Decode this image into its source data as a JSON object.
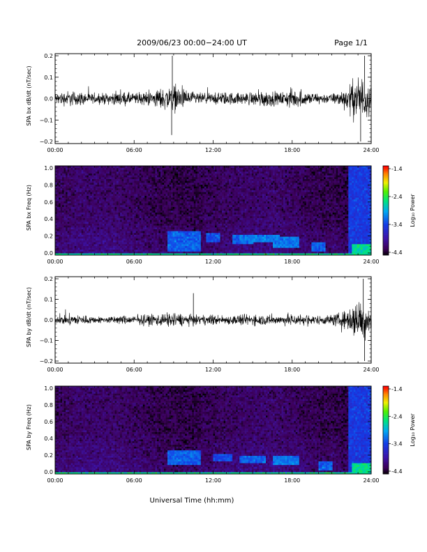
{
  "header": {
    "title": "2009/06/23  00:00−24:00 UT",
    "page": "Page 1/1"
  },
  "x_axis": {
    "label": "Universal Time (hh:mm)",
    "ticks": [
      "00:00",
      "06:00",
      "12:00",
      "18:00",
      "24:00"
    ],
    "range_hours": [
      0,
      24
    ]
  },
  "colorbar": {
    "label": "Log₁₀ Power",
    "ticks": [
      "-1.4",
      "-2.4",
      "-3.4",
      "-4.4"
    ],
    "range": [
      -4.4,
      -1.4
    ]
  },
  "chart_data": [
    {
      "type": "line",
      "ylabel": "SPA bx dB/dt (nT/sec)",
      "ylim": [
        -0.2,
        0.2
      ],
      "yticks": [
        "0.2",
        "0.1",
        "0.0",
        "−0.1",
        "−0.2"
      ],
      "xlim_hours": [
        0,
        24
      ],
      "envelope_hours": [
        0,
        1,
        2,
        3,
        4,
        5,
        6,
        7,
        8,
        9,
        10,
        11,
        12,
        13,
        14,
        15,
        16,
        17,
        18,
        19,
        20,
        21,
        22,
        22.5,
        23,
        23.5,
        24
      ],
      "envelope_amplitude": [
        0.05,
        0.07,
        0.06,
        0.04,
        0.05,
        0.06,
        0.05,
        0.06,
        0.09,
        0.12,
        0.07,
        0.05,
        0.05,
        0.06,
        0.05,
        0.06,
        0.08,
        0.05,
        0.09,
        0.06,
        0.05,
        0.04,
        0.09,
        0.15,
        0.2,
        0.2,
        0.12
      ],
      "spikes": [
        {
          "t": 8.9,
          "v": 0.2
        },
        {
          "t": 8.85,
          "v": -0.17
        },
        {
          "t": 23.2,
          "v": -0.2
        },
        {
          "t": 23.5,
          "v": 0.2
        }
      ]
    },
    {
      "type": "heatmap",
      "ylabel": "SPA bx Freq (Hz)",
      "ylim": [
        0.0,
        1.0
      ],
      "yticks": [
        "1.0",
        "0.8",
        "0.6",
        "0.4",
        "0.2",
        "0.0"
      ],
      "xlim_hours": [
        0,
        24
      ],
      "zlim": [
        -4.4,
        -1.4
      ],
      "features": [
        {
          "t": [
            0,
            24
          ],
          "f": [
            0,
            0.03
          ],
          "level": -2.6
        },
        {
          "t": [
            8.5,
            11
          ],
          "f": [
            0.05,
            0.28
          ],
          "level": -3.2
        },
        {
          "t": [
            11.5,
            12.5
          ],
          "f": [
            0.15,
            0.25
          ],
          "level": -3.3
        },
        {
          "t": [
            13.5,
            15
          ],
          "f": [
            0.12,
            0.22
          ],
          "level": -3.2
        },
        {
          "t": [
            14,
            17
          ],
          "f": [
            0.15,
            0.22
          ],
          "level": -3.1
        },
        {
          "t": [
            16.5,
            18.5
          ],
          "f": [
            0.08,
            0.2
          ],
          "level": -3.1
        },
        {
          "t": [
            19.5,
            20.5
          ],
          "f": [
            0.05,
            0.15
          ],
          "level": -3.2
        },
        {
          "t": [
            22.3,
            24
          ],
          "f": [
            0,
            1.0
          ],
          "level": -3.4
        },
        {
          "t": [
            22.5,
            24
          ],
          "f": [
            0,
            0.12
          ],
          "level": -2.6
        }
      ]
    },
    {
      "type": "line",
      "ylabel": "SPA by dB/dt (nT/sec)",
      "ylim": [
        -0.2,
        0.2
      ],
      "yticks": [
        "0.2",
        "0.1",
        "0.0",
        "−0.1",
        "−0.2"
      ],
      "xlim_hours": [
        0,
        24
      ],
      "envelope_hours": [
        0,
        1,
        2,
        3,
        4,
        5,
        6,
        7,
        8,
        9,
        10,
        11,
        12,
        13,
        14,
        15,
        16,
        17,
        18,
        19,
        20,
        21,
        22,
        22.5,
        23,
        23.5,
        24
      ],
      "envelope_amplitude": [
        0.03,
        0.05,
        0.05,
        0.03,
        0.03,
        0.04,
        0.04,
        0.05,
        0.06,
        0.07,
        0.05,
        0.04,
        0.05,
        0.04,
        0.05,
        0.05,
        0.05,
        0.04,
        0.06,
        0.05,
        0.04,
        0.05,
        0.08,
        0.14,
        0.2,
        0.18,
        0.1
      ],
      "spikes": [
        {
          "t": 10.5,
          "v": 0.13
        },
        {
          "t": 23.5,
          "v": -0.2
        },
        {
          "t": 23.4,
          "v": 0.2
        }
      ]
    },
    {
      "type": "heatmap",
      "ylabel": "SPA by Freq (Hz)",
      "ylim": [
        0.0,
        1.0
      ],
      "yticks": [
        "1.0",
        "0.8",
        "0.6",
        "0.4",
        "0.2",
        "0.0"
      ],
      "xlim_hours": [
        0,
        24
      ],
      "zlim": [
        -4.4,
        -1.4
      ],
      "features": [
        {
          "t": [
            0,
            24
          ],
          "f": [
            0,
            0.03
          ],
          "level": -2.6
        },
        {
          "t": [
            8.5,
            11
          ],
          "f": [
            0.1,
            0.27
          ],
          "level": -3.2
        },
        {
          "t": [
            12,
            13.5
          ],
          "f": [
            0.15,
            0.23
          ],
          "level": -3.3
        },
        {
          "t": [
            14,
            16
          ],
          "f": [
            0.12,
            0.2
          ],
          "level": -3.2
        },
        {
          "t": [
            16.5,
            18.5
          ],
          "f": [
            0.1,
            0.2
          ],
          "level": -3.1
        },
        {
          "t": [
            20,
            21
          ],
          "f": [
            0.05,
            0.15
          ],
          "level": -3.2
        },
        {
          "t": [
            22.3,
            24
          ],
          "f": [
            0,
            1.0
          ],
          "level": -3.4
        },
        {
          "t": [
            22.5,
            24
          ],
          "f": [
            0,
            0.12
          ],
          "level": -2.6
        }
      ]
    }
  ]
}
